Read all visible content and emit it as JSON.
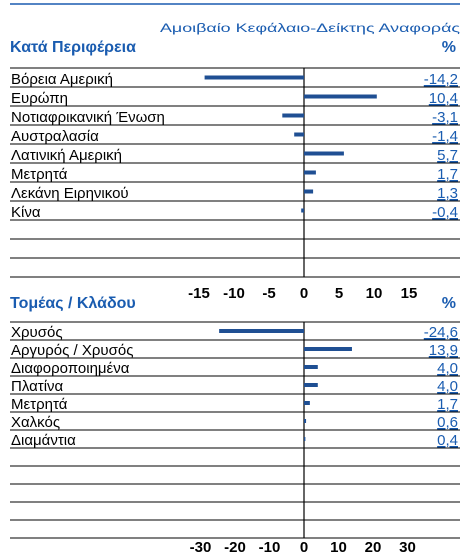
{
  "header": {
    "subtitle": "Αμοιβαίο Κεφάλαιο-Δείκτης Αναφοράς"
  },
  "chart_data": [
    {
      "type": "bar",
      "orientation": "horizontal",
      "title": "Κατά Περιφέρεια",
      "unit": "%",
      "color": "#1f4f93",
      "categories": [
        "Βόρεια Αμερική",
        "Ευρώπη",
        "Νοτιαφρικανική Ένωση",
        "Αυστραλασία",
        "Λατινική Αμερική",
        "Μετρητά",
        "Λεκάνη Ειρηνικού",
        "Κίνα"
      ],
      "values": [
        -14.2,
        10.4,
        -3.1,
        -1.4,
        5.7,
        1.7,
        1.3,
        -0.4
      ],
      "value_labels": [
        "-14,2",
        "10,4",
        "-3,1",
        "-1,4",
        "5,7",
        "1,7",
        "1,3",
        "-0,4"
      ],
      "xlim": [
        -20,
        20
      ],
      "xticks": [
        -15,
        -10,
        -5,
        0,
        5,
        10,
        15
      ]
    },
    {
      "type": "bar",
      "orientation": "horizontal",
      "title": "Τομέας / Κλάδου",
      "unit": "%",
      "color": "#1f4f93",
      "categories": [
        "Χρυσός",
        "Αργυρός / Χρυσός",
        "Διαφοροποιημένα",
        "Πλατίνα",
        "Μετρητά",
        "Χαλκός",
        "Διαμάντια"
      ],
      "values": [
        -24.6,
        13.9,
        4.0,
        4.0,
        1.7,
        0.6,
        0.4
      ],
      "value_labels": [
        "-24,6",
        "13,9",
        "4,0",
        "4,0",
        "1,7",
        "0,6",
        "0,4"
      ],
      "xlim": [
        -40,
        40
      ],
      "xticks": [
        -30,
        -20,
        -10,
        0,
        10,
        20,
        30
      ]
    }
  ]
}
